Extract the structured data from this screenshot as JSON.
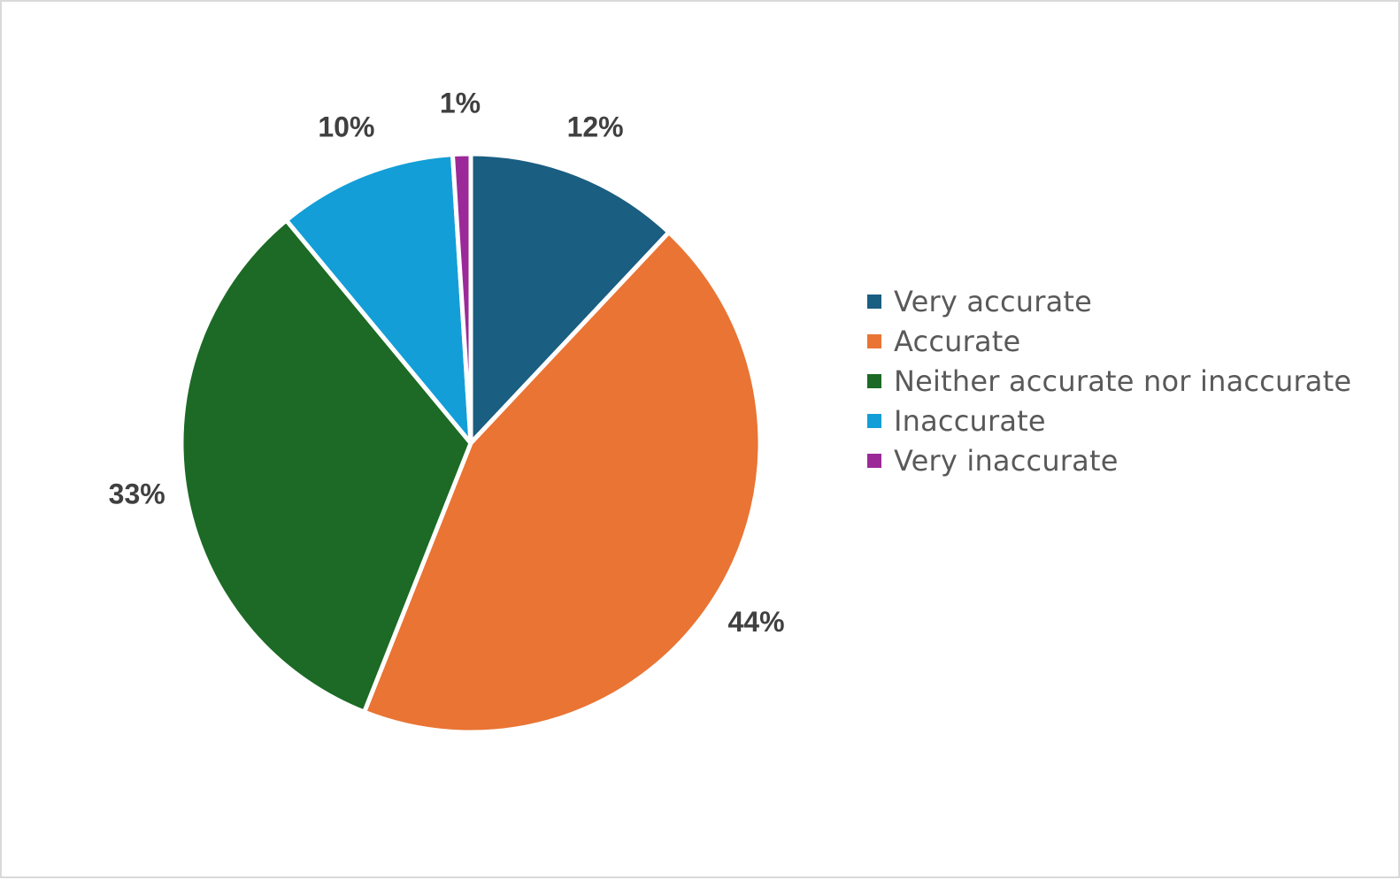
{
  "chart_data": {
    "type": "pie",
    "title": "",
    "categories": [
      "Very accurate",
      "Accurate",
      "Neither accurate nor inaccurate",
      "Inaccurate",
      "Very inaccurate"
    ],
    "values": [
      12,
      44,
      33,
      10,
      1
    ],
    "data_labels": [
      "12%",
      "44%",
      "33%",
      "10%",
      "1%"
    ],
    "colors": [
      "#1a5e81",
      "#e97434",
      "#1c6a25",
      "#139ed8",
      "#9b2a98"
    ],
    "legend_placement": "right",
    "label_position": "outside-end",
    "start_angle_deg": 0,
    "direction": "clockwise"
  }
}
